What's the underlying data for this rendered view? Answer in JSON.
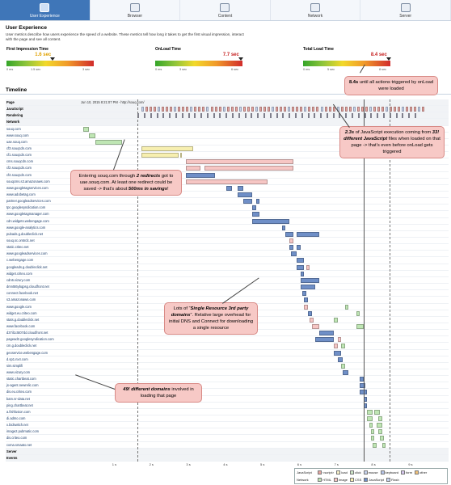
{
  "tabs": [
    {
      "label": "User Experience",
      "icon": "user-experience-icon",
      "active": true
    },
    {
      "label": "Browser",
      "icon": "browser-icon",
      "active": false
    },
    {
      "label": "Content",
      "icon": "content-icon",
      "active": false
    },
    {
      "label": "Network",
      "icon": "network-icon",
      "active": false
    },
    {
      "label": "Server",
      "icon": "server-icon",
      "active": false
    }
  ],
  "header": {
    "title": "User Experience",
    "description": "User metrics describe how users experience the speed of a website. These metrics tell how long it takes to get the first visual impression, interact with the page and see all content."
  },
  "metrics": [
    {
      "label": "First Impression Time",
      "value": "1.6 sec",
      "min": "0 ms",
      "mid": "1.5 sec",
      "max": "3 sec",
      "level": 0.53,
      "color": "#e0a100"
    },
    {
      "label": "OnLoad Time",
      "value": "7.7 sec",
      "min": "0 ms",
      "mid": "3 sec",
      "max": "6 sec",
      "level": 0.98,
      "color": "#c62020"
    },
    {
      "label": "Total Load Time",
      "value": "8.4 sec",
      "min": "0 ms",
      "mid": "5 sec",
      "max": "8 sec",
      "level": 0.98,
      "color": "#c62020"
    }
  ],
  "timeline": {
    "title": "Timeline",
    "page_url": "Jun 10, 2015 8:21:07 PM - http://souq.com/",
    "axis_ticks": [
      "1 s",
      "2 s",
      "3 s",
      "4 s",
      "5 s",
      "6 s",
      "7 s",
      "8 s",
      "9 s"
    ],
    "rows": [
      {
        "label": "Page",
        "type": "section"
      },
      {
        "label": "JavaScript",
        "type": "section"
      },
      {
        "label": "Rendering",
        "type": "section"
      },
      {
        "label": "Network",
        "type": "section"
      },
      {
        "label": "souq.com",
        "segs": [
          [
            0.13,
            0.28,
            "#bfe6b4"
          ]
        ]
      },
      {
        "label": "www.souq.com",
        "segs": [
          [
            0.28,
            0.45,
            "#bfe6b4"
          ]
        ]
      },
      {
        "label": "uae.souq.com",
        "segs": [
          [
            0.45,
            1.18,
            "#bfe6b4"
          ]
        ]
      },
      {
        "label": "cf3.souqcdn.com",
        "segs": [
          [
            1.7,
            3.1,
            "#f7efb0"
          ]
        ]
      },
      {
        "label": "cf1.souqcdn.com",
        "segs": [
          [
            1.7,
            2.7,
            "#f7efb0"
          ],
          [
            2.75,
            2.8,
            "#f7efb0"
          ]
        ]
      },
      {
        "label": "cms.souqcdn.com",
        "segs": [
          [
            2.9,
            5.8,
            "#f6c6c4"
          ]
        ]
      },
      {
        "label": "cf2.souqcdn.com",
        "segs": [
          [
            2.9,
            3.3,
            "#f6c6c4"
          ],
          [
            3.4,
            5.8,
            "#f6c6c4"
          ]
        ]
      },
      {
        "label": "cf4.souqcdn.com",
        "segs": [
          [
            2.9,
            3.7,
            "#6f8fc7"
          ]
        ]
      },
      {
        "label": "souqcms.s3.amazonaws.com",
        "segs": [
          [
            2.9,
            5.1,
            "#f6c6c4"
          ]
        ]
      },
      {
        "label": "www.googletagservices.com",
        "segs": [
          [
            4.0,
            4.15,
            "#6f8fc7"
          ],
          [
            4.3,
            4.45,
            "#6f8fc7"
          ]
        ]
      },
      {
        "label": "www.adobetag.com",
        "segs": [
          [
            4.3,
            4.7,
            "#6f8fc7"
          ]
        ]
      },
      {
        "label": "partner.googleadservices.com",
        "segs": [
          [
            4.45,
            4.7,
            "#6f8fc7"
          ],
          [
            4.8,
            4.9,
            "#6f8fc7"
          ]
        ]
      },
      {
        "label": "tpc.googlesyndication.com",
        "segs": [
          [
            4.7,
            4.8,
            "#6f8fc7"
          ]
        ]
      },
      {
        "label": "www.googletagmanager.com",
        "segs": [
          [
            4.7,
            4.9,
            "#6f8fc7"
          ]
        ]
      },
      {
        "label": "cdn.widgets.webengage.com",
        "segs": [
          [
            4.7,
            5.7,
            "#6f8fc7"
          ]
        ]
      },
      {
        "label": "www.google-analytics.com",
        "segs": [
          [
            5.5,
            5.6,
            "#6f8fc7"
          ]
        ]
      },
      {
        "label": "pubads.g.doubleclick.net",
        "segs": [
          [
            5.6,
            5.8,
            "#6f8fc7"
          ],
          [
            5.9,
            6.5,
            "#6f8fc7"
          ]
        ]
      },
      {
        "label": "souq.sc.omtrdc.net",
        "segs": [
          [
            5.7,
            5.8,
            "#f6c6c4"
          ]
        ]
      },
      {
        "label": "static.criteo.net",
        "segs": [
          [
            5.7,
            5.8,
            "#6f8fc7"
          ],
          [
            5.9,
            6.0,
            "#6f8fc7"
          ]
        ]
      },
      {
        "label": "www.googleadservices.com",
        "segs": [
          [
            5.75,
            5.9,
            "#6f8fc7"
          ]
        ]
      },
      {
        "label": "c.webengage.com",
        "segs": [
          [
            5.9,
            6.1,
            "#6f8fc7"
          ]
        ]
      },
      {
        "label": "googleads.g.doubleclick.net",
        "segs": [
          [
            5.9,
            6.1,
            "#6f8fc7"
          ],
          [
            6.15,
            6.25,
            "#f6c6c4"
          ]
        ]
      },
      {
        "label": "widget.criteo.com",
        "segs": [
          [
            6.0,
            6.1,
            "#6f8fc7"
          ]
        ]
      },
      {
        "label": "cdn6.vizury.com",
        "segs": [
          [
            6.0,
            6.5,
            "#6f8fc7"
          ]
        ]
      },
      {
        "label": "dmn5t6ybqpsg.cloudfront.net",
        "segs": [
          [
            6.0,
            6.4,
            "#6f8fc7"
          ]
        ]
      },
      {
        "label": "connect.facebook.net",
        "segs": [
          [
            6.05,
            6.15,
            "#6f8fc7"
          ]
        ]
      },
      {
        "label": "s3.amazonaws.com",
        "segs": [
          [
            6.1,
            6.2,
            "#6f8fc7"
          ]
        ]
      },
      {
        "label": "www.google.com",
        "segs": [
          [
            6.1,
            6.2,
            "#f6c6c4"
          ],
          [
            7.2,
            7.3,
            "#bfe6b4"
          ]
        ]
      },
      {
        "label": "widget.eu.criteo.com",
        "segs": [
          [
            6.2,
            6.3,
            "#6f8fc7"
          ],
          [
            7.5,
            7.6,
            "#bfe6b4"
          ]
        ]
      },
      {
        "label": "stats.g.doubleclick.net",
        "segs": [
          [
            6.25,
            6.35,
            "#f6c6c4"
          ],
          [
            6.9,
            7.0,
            "#bfe6b4"
          ]
        ]
      },
      {
        "label": "www.facebook.com",
        "segs": [
          [
            6.3,
            6.5,
            "#f6c6c4"
          ],
          [
            7.5,
            7.7,
            "#bfe6b4"
          ]
        ]
      },
      {
        "label": "d37il1c5t07dd.cloudfront.net",
        "segs": [
          [
            6.5,
            6.9,
            "#6f8fc7"
          ]
        ]
      },
      {
        "label": "pagead2.googlesyndication.com",
        "segs": [
          [
            6.4,
            6.9,
            "#6f8fc7"
          ],
          [
            7.0,
            7.1,
            "#f6c6c4"
          ]
        ]
      },
      {
        "label": "cm.g.doubleclick.net",
        "segs": [
          [
            6.9,
            7.0,
            "#f6c6c4"
          ],
          [
            7.1,
            7.2,
            "#bfe6b4"
          ]
        ]
      },
      {
        "label": "geoservice.webengage.com",
        "segs": [
          [
            6.9,
            7.1,
            "#6f8fc7"
          ]
        ]
      },
      {
        "label": "d.sp1.nx4.com",
        "segs": [
          [
            7.0,
            7.15,
            "#6f8fc7"
          ]
        ]
      },
      {
        "label": "sim.simplifi",
        "segs": [
          [
            7.1,
            7.2,
            "#bfe6b4"
          ]
        ]
      },
      {
        "label": "www.vizury.com",
        "segs": [
          [
            7.15,
            7.3,
            "#6f8fc7"
          ]
        ]
      },
      {
        "label": "static.chartbeat.com",
        "segs": [
          [
            7.6,
            7.7,
            "#6f8fc7"
          ]
        ]
      },
      {
        "label": "js-agent.newrelic.com",
        "segs": [
          [
            7.6,
            7.75,
            "#6f8fc7"
          ]
        ]
      },
      {
        "label": "dis.eu.criteo.com",
        "segs": [
          [
            7.6,
            7.8,
            "#6f8fc7"
          ]
        ]
      },
      {
        "label": "bam.nr-data.net",
        "segs": [
          [
            7.7,
            7.8,
            "#6f8fc7"
          ]
        ]
      },
      {
        "label": "ping.chartbeat.net",
        "segs": [
          [
            7.7,
            7.8,
            "#6f8fc7"
          ]
        ]
      },
      {
        "label": "a.fishfusion.com",
        "segs": [
          [
            7.8,
            7.95,
            "#bfe6b4"
          ],
          [
            8.0,
            8.15,
            "#bfe6b4"
          ]
        ]
      },
      {
        "label": "di.admo.com",
        "segs": [
          [
            7.8,
            7.95,
            "#bfe6b4"
          ],
          [
            8.1,
            8.2,
            "#bfe6b4"
          ]
        ]
      },
      {
        "label": "x.bidswitch.net",
        "segs": [
          [
            7.85,
            7.95,
            "#bfe6b4"
          ],
          [
            8.05,
            8.2,
            "#bfe6b4"
          ]
        ]
      },
      {
        "label": "image2.pubmatic.com",
        "segs": [
          [
            7.9,
            8.0,
            "#bfe6b4"
          ],
          [
            8.1,
            8.2,
            "#bfe6b4"
          ]
        ]
      },
      {
        "label": "dis.criteo.com",
        "segs": [
          [
            7.9,
            8.0,
            "#bfe6b4"
          ],
          [
            8.15,
            8.25,
            "#bfe6b4"
          ]
        ]
      },
      {
        "label": "cxma.smaato.net",
        "segs": [
          [
            7.95,
            8.05,
            "#bfe6b4"
          ],
          [
            8.2,
            8.3,
            "#bfe6b4"
          ]
        ]
      },
      {
        "label": "Server",
        "type": "section"
      },
      {
        "label": "Events",
        "type": "section"
      }
    ]
  },
  "callouts": {
    "total": "<b>8.4s</b> until all actions triggered by onLoad were loaded",
    "js": "<b><i>2.3s</i></b> of JavaScript execution coming from <b><i>33! different JavaScript</i></b> files when loaded on that page -> that’s even before onLoad gets triggered",
    "redirect": "Entering souq.com through <b><i>2 redirects</i></b> got to uae.souq.com. At least one redirect could be saved -> that’s about <b><i>500ms in savings</i></b>!",
    "single": "Lots of “<b><i>Single Resource 3rd party domains</i></b>”. Relative large overhead for initial DNS and Connect for downloading a single resource",
    "domains": "<b><i>49! different domains</i></b> involved in loading that page"
  },
  "legend": {
    "js_caption": "JavaScript",
    "net_caption": "Network",
    "js_items": [
      {
        "label": "<script>",
        "color": "#e9a6a2"
      },
      {
        "label": "load",
        "color": "#f6efc7"
      },
      {
        "label": "click",
        "color": "#cfe8c8"
      },
      {
        "label": "mouse",
        "color": "#c8d4ef"
      },
      {
        "label": "keyboard",
        "color": "#b7c6ea"
      },
      {
        "label": "form",
        "color": "#d6c6ee"
      },
      {
        "label": "other",
        "color": "#f3c27a"
      }
    ],
    "net_items": [
      {
        "label": "HTML",
        "color": "#bfe6b4"
      },
      {
        "label": "Image",
        "color": "#f6c6c4"
      },
      {
        "label": "CSS",
        "color": "#f7efb0"
      },
      {
        "label": "JavaScript",
        "color": "#6f8fc7"
      },
      {
        "label": "Flash",
        "color": "#c8d4ef"
      }
    ]
  },
  "markers": {
    "first_impression": 1.6,
    "onload": 7.7,
    "total": 8.4
  }
}
